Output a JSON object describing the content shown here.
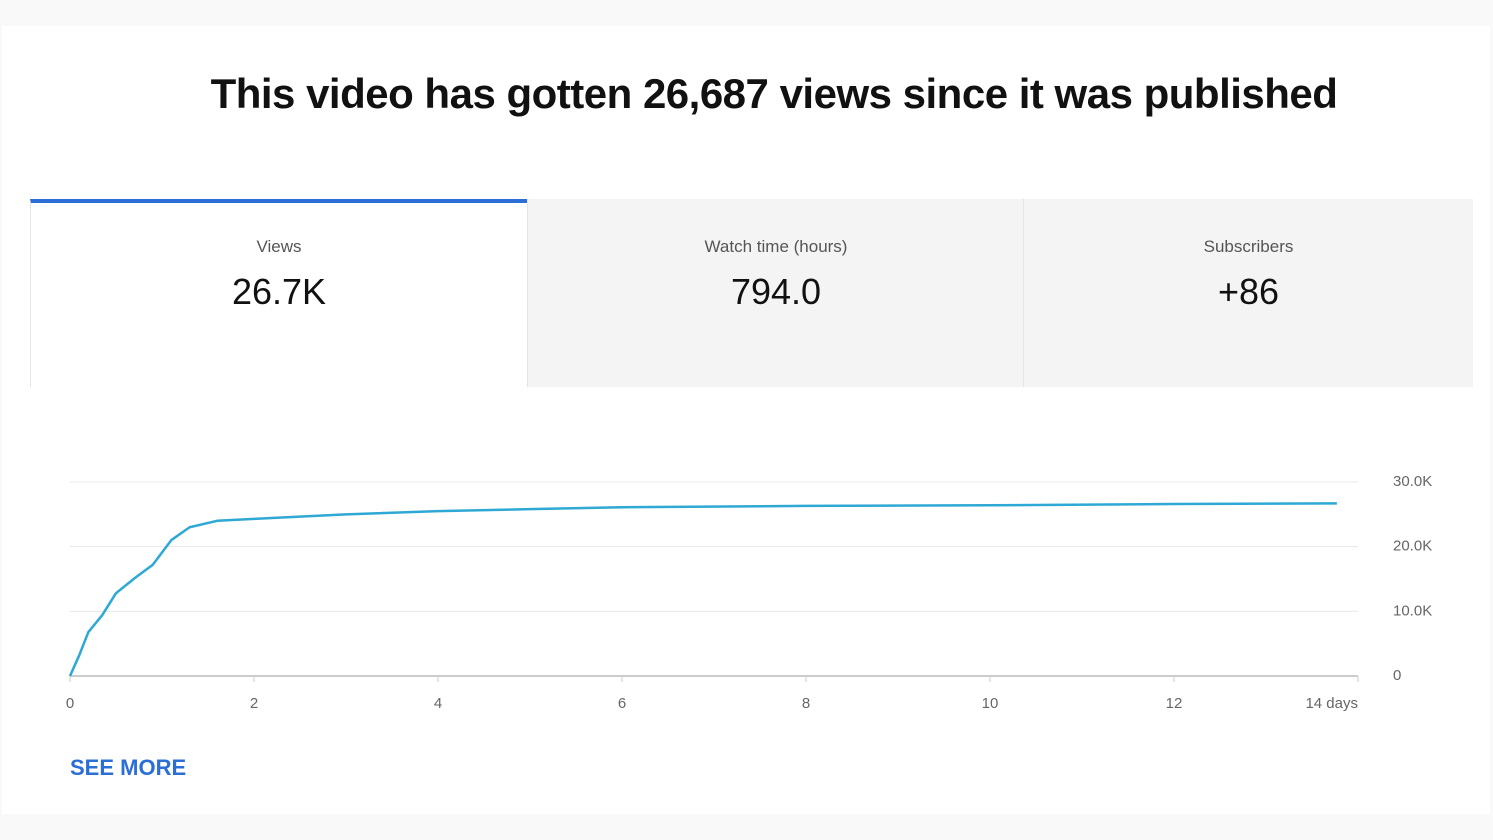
{
  "header": {
    "title": "This video has gotten 26,687 views since it was published"
  },
  "tabs": [
    {
      "label": "Views",
      "value": "26.7K"
    },
    {
      "label": "Watch time (hours)",
      "value": "794.0"
    },
    {
      "label": "Subscribers",
      "value": "+86"
    }
  ],
  "chart_data": {
    "type": "line",
    "x": [
      0,
      0.1,
      0.2,
      0.35,
      0.5,
      0.7,
      0.9,
      1.1,
      1.3,
      1.6,
      2,
      3,
      4,
      5,
      6,
      8,
      10,
      12,
      13.77
    ],
    "series": [
      {
        "name": "Views",
        "color": "#2ea8d4",
        "values": [
          0,
          3200,
          6800,
          9400,
          12800,
          15100,
          17200,
          21000,
          23000,
          24000,
          24300,
          25000,
          25500,
          25800,
          26100,
          26300,
          26400,
          26600,
          26687
        ]
      }
    ],
    "xlim": [
      0,
      14
    ],
    "xticks": [
      0,
      2,
      4,
      6,
      8,
      10,
      12,
      {
        "value": 14,
        "label": "14 days"
      }
    ],
    "ylim": [
      0,
      30000
    ],
    "yticks": [
      0,
      {
        "value": 10000,
        "label": "10.0K"
      },
      {
        "value": 20000,
        "label": "20.0K"
      },
      {
        "value": 30000,
        "label": "30.0K"
      }
    ],
    "grid": true
  },
  "link": "SEE MORE"
}
